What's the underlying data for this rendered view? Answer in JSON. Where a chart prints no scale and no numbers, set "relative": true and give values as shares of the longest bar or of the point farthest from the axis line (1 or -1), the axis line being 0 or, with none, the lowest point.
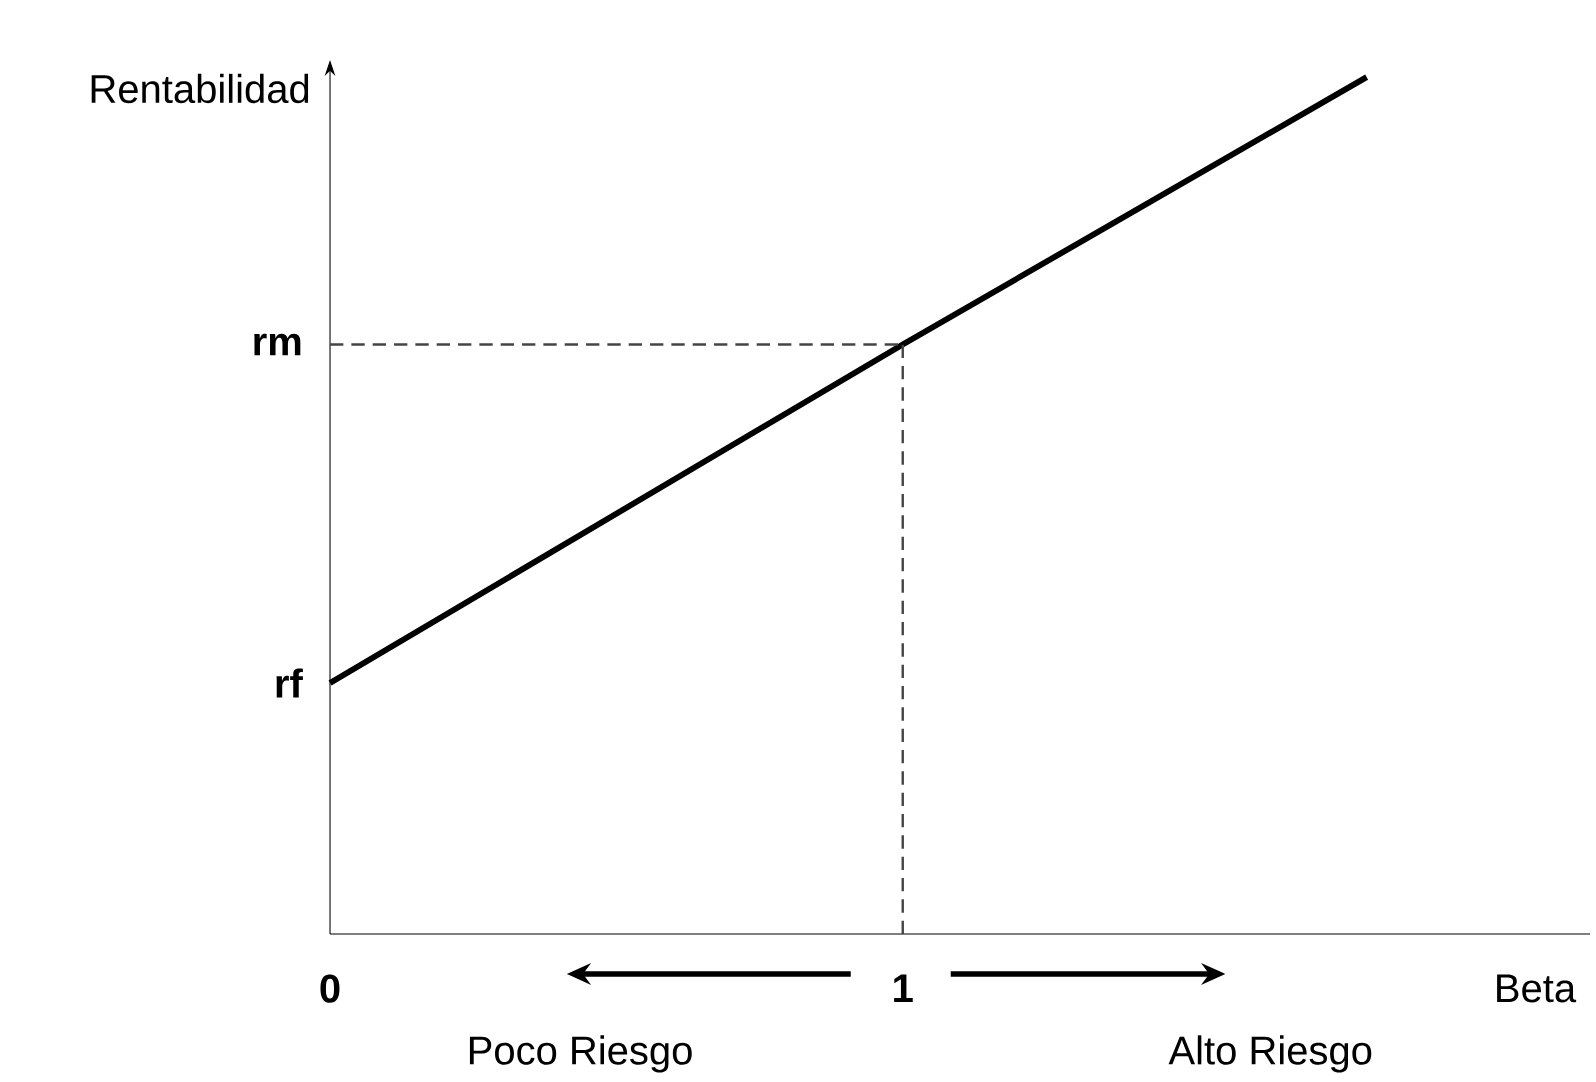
{
  "chart_data": {
    "type": "line",
    "relative": true,
    "xlabel": "Beta",
    "ylabel": "Rentabilidad",
    "xlim": [
      0,
      2.2
    ],
    "xticks": [
      0,
      1
    ],
    "series": [
      {
        "color": "#000000",
        "x": [
          0,
          1,
          1.81
        ],
        "values": [
          0.293,
          0.688,
          1
        ]
      },
      {
        "color": "#444444",
        "line_style": "dashed",
        "x": [
          0,
          1
        ],
        "values": [
          0.688,
          0.688
        ]
      },
      {
        "color": "#444444",
        "line_style": "dashed",
        "x": [
          1,
          1
        ],
        "values": [
          0,
          0.688
        ]
      }
    ],
    "annotations": [
      {
        "text": "rf",
        "x": 0,
        "y": 0.293
      },
      {
        "text": "rm",
        "x": 0,
        "y": 0.688
      },
      "Poco Riesgo",
      "Alto Riesgo"
    ]
  }
}
